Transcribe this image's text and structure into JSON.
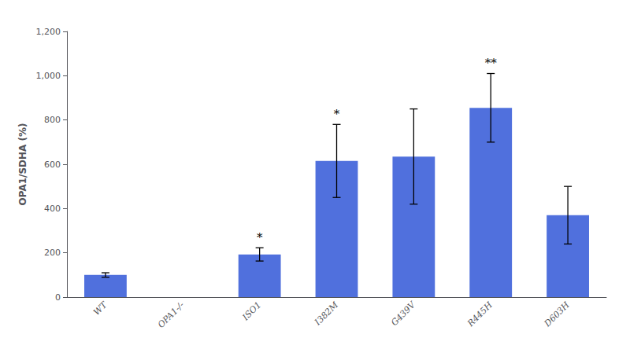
{
  "chart_data": {
    "type": "bar",
    "ylabel": "OPA1/SDHA (%)",
    "categories": [
      "WT",
      "OPA1-/-",
      "ISO1",
      "I382M",
      "G439V",
      "R445H",
      "D603H"
    ],
    "values": [
      100,
      0,
      193,
      615,
      635,
      855,
      370
    ],
    "errors": [
      10,
      0,
      30,
      165,
      215,
      155,
      130
    ],
    "annotations": [
      {
        "category": "ISO1",
        "text": "*"
      },
      {
        "category": "I382M",
        "text": "*"
      },
      {
        "category": "R445H",
        "text": "**"
      }
    ],
    "ylim": [
      0,
      1200
    ],
    "yticks": [
      0,
      200,
      400,
      600,
      800,
      1000,
      1200
    ],
    "grid": false
  }
}
